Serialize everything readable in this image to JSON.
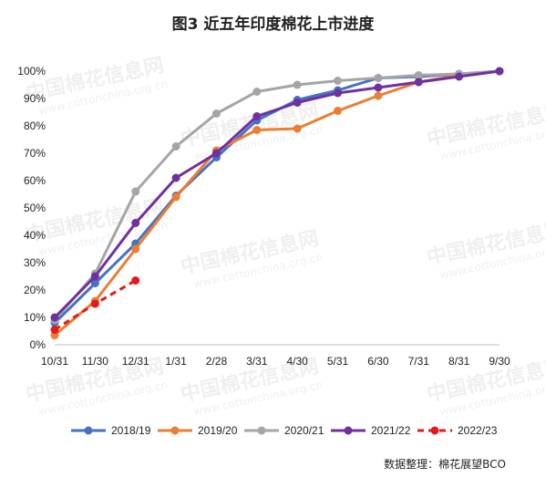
{
  "chart_data": {
    "type": "line",
    "title": "图3  近五年印度棉花上市进度",
    "categories": [
      "10/31",
      "11/30",
      "12/31",
      "1/31",
      "2/28",
      "3/31",
      "4/30",
      "5/31",
      "6/30",
      "7/31",
      "8/31",
      "9/30"
    ],
    "y_ticks": [
      "0%",
      "10%",
      "20%",
      "30%",
      "40%",
      "50%",
      "60%",
      "70%",
      "80%",
      "90%",
      "100%"
    ],
    "ylim": [
      0,
      100
    ],
    "legend_position": "bottom",
    "grid": false,
    "series": [
      {
        "name": "2018/19",
        "color": "#4472C4",
        "dashed": false,
        "values": [
          8,
          22.5,
          37,
          54.5,
          68.5,
          82,
          89.5,
          93,
          97.5,
          98,
          99,
          100
        ]
      },
      {
        "name": "2019/20",
        "color": "#ED7D31",
        "dashed": false,
        "values": [
          3.5,
          16,
          35,
          54,
          71,
          78.5,
          79,
          85.5,
          91,
          96,
          98.5,
          100
        ]
      },
      {
        "name": "2020/21",
        "color": "#A5A5A5",
        "dashed": false,
        "values": [
          9,
          26,
          56,
          72.5,
          84.5,
          92.5,
          95,
          96.5,
          97.5,
          98.5,
          99,
          100
        ]
      },
      {
        "name": "2021/22",
        "color": "#7030A0",
        "dashed": false,
        "values": [
          10,
          25,
          44.5,
          61,
          70,
          83.5,
          88.5,
          92,
          94,
          96,
          98,
          100
        ]
      },
      {
        "name": "2022/23",
        "color": "#E31A1C",
        "dashed": true,
        "values": [
          5.5,
          15,
          23.5,
          null,
          null,
          null,
          null,
          null,
          null,
          null,
          null,
          null
        ]
      }
    ]
  },
  "source_note": "数据整理：棉花展望BCO",
  "watermark": {
    "brand": "中国棉花信息网",
    "url": "www.cottonchina.org.cn"
  }
}
